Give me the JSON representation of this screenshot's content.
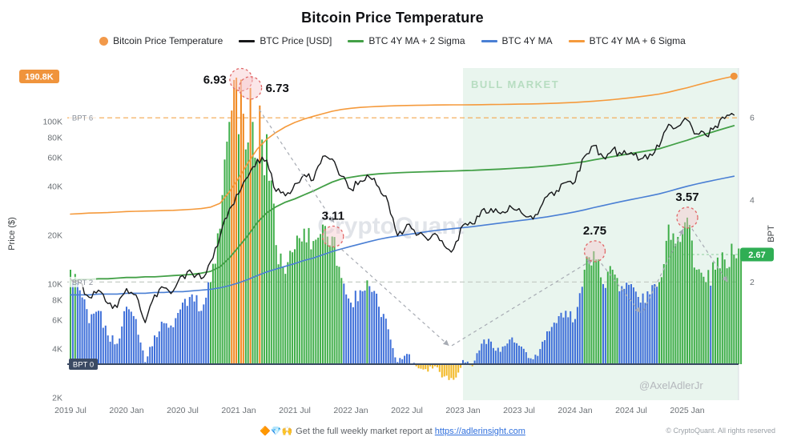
{
  "title": "Bitcoin Price Temperature",
  "legend": [
    {
      "label": "Bitcoin Price Temperature",
      "marker": "dot",
      "color": "#f2994a"
    },
    {
      "label": "BTC Price [USD]",
      "marker": "line",
      "color": "#17181a"
    },
    {
      "label": "BTC 4Y MA + 2 Sigma",
      "marker": "line",
      "color": "#43a047"
    },
    {
      "label": "BTC 4Y MA",
      "marker": "line",
      "color": "#4a7fd4"
    },
    {
      "label": "BTC 4Y MA + 6 Sigma",
      "marker": "line",
      "color": "#f59a3c"
    }
  ],
  "watermark": "CryptoQuant",
  "handle": "@AxelAdlerJr",
  "bull_market_label": "BULL MARKET",
  "footer": {
    "emoji": "🔶💎🙌",
    "text": "Get the full weekly market report at",
    "link": "https://adlerinsight.com",
    "copyright": "© CryptoQuant. All rights reserved"
  },
  "left_axis": {
    "label": "Price ($)",
    "top_badge": "190.8K",
    "ticks": [
      {
        "label": "100K",
        "value_k": 100
      },
      {
        "label": "80K",
        "value_k": 80
      },
      {
        "label": "60K",
        "value_k": 60
      },
      {
        "label": "40K",
        "value_k": 40
      },
      {
        "label": "20K",
        "value_k": 20
      },
      {
        "label": "10K",
        "value_k": 10
      },
      {
        "label": "8K",
        "value_k": 8
      },
      {
        "label": "6K",
        "value_k": 6
      },
      {
        "label": "4K",
        "value_k": 4
      },
      {
        "label": "2K",
        "value_k": 2
      }
    ]
  },
  "right_axis": {
    "label": "BPT",
    "ticks": [
      6,
      4,
      2
    ],
    "current_badge": "2.67"
  },
  "x_ticks": [
    "2019 Jul",
    "2020 Jan",
    "2020 Jul",
    "2021 Jan",
    "2021 Jul",
    "2022 Jan",
    "2022 Jul",
    "2023 Jan",
    "2023 Jul",
    "2024 Jan",
    "2024 Jul",
    "2025 Jan"
  ],
  "ref_lines": [
    {
      "label": "BPT 6",
      "bpt": 6,
      "style": "light"
    },
    {
      "label": "BPT 2",
      "bpt": 2,
      "style": "light"
    },
    {
      "label": "BPT 0",
      "bpt": 0,
      "style": "dark"
    }
  ],
  "annotations": [
    {
      "label": "6.93",
      "month": 18.25,
      "bpt": 6.93,
      "label_side": "left"
    },
    {
      "label": "6.73",
      "month": 19.25,
      "bpt": 6.73,
      "label_side": "right"
    },
    {
      "label": "3.11",
      "month": 28.1,
      "bpt": 3.11,
      "label_side": "top"
    },
    {
      "label": "2.75",
      "month": 56.1,
      "bpt": 2.75,
      "label_side": "top"
    },
    {
      "label": "3.57",
      "month": 66.0,
      "bpt": 3.57,
      "label_side": "top"
    }
  ],
  "annotation_arrows": [
    {
      "from": [
        20.2,
        6.2
      ],
      "to": [
        28.2,
        3.45
      ]
    },
    {
      "from": [
        29.0,
        2.8
      ],
      "to": [
        40.5,
        0.45
      ]
    },
    {
      "from": [
        40.8,
        0.45
      ],
      "to": [
        55.9,
        2.55
      ]
    },
    {
      "from": [
        56.8,
        2.45
      ],
      "to": [
        61.0,
        1.25
      ]
    },
    {
      "from": [
        61.3,
        1.3
      ],
      "to": [
        65.6,
        3.3
      ]
    },
    {
      "from": [
        66.5,
        3.3
      ],
      "to": [
        70.3,
        2.0
      ]
    }
  ],
  "colors": {
    "bar_blue": "#3e6fd9",
    "bar_green": "#3fae49",
    "bar_orange": "#f0861c",
    "bar_yellow": "#f2b824",
    "line_black": "#17181a",
    "line_blue": "#4a7fd4",
    "line_green": "#43a047",
    "line_orange": "#f59a3c",
    "badge_orange": "#f0943c",
    "badge_green": "#2fae54",
    "bull_bg": "#e9f5ee",
    "bull_text": "#b7ddc1",
    "annotation_red": "#e06666"
  },
  "chart_data": [
    {
      "type": "line",
      "title": "Bitcoin Price Temperature",
      "x_start": "2019-07",
      "x_interval": "1 month",
      "n_points": 72,
      "y_axis": {
        "label": "Price ($)",
        "scale": "log",
        "ticks_k": [
          2,
          4,
          6,
          8,
          10,
          20,
          40,
          60,
          80,
          100
        ],
        "range_k": [
          2,
          210
        ]
      },
      "series": [
        {
          "name": "BTC Price [USD]",
          "color": "#17181a",
          "values_k": [
            10.8,
            10.2,
            8.3,
            9.2,
            7.6,
            7.2,
            9.4,
            8.6,
            5.8,
            8.6,
            9.5,
            9.1,
            11.3,
            11.7,
            10.8,
            13.8,
            19.7,
            29.0,
            36.0,
            46.0,
            58.8,
            58.0,
            37.3,
            35.0,
            41.5,
            47.2,
            43.8,
            61.3,
            59.0,
            46.2,
            38.5,
            43.2,
            45.5,
            39.5,
            31.8,
            19.9,
            23.3,
            20.0,
            19.4,
            20.5,
            17.2,
            16.5,
            23.1,
            23.5,
            28.5,
            29.2,
            27.2,
            30.5,
            29.2,
            26.0,
            26.9,
            34.7,
            37.7,
            42.3,
            42.6,
            61.2,
            71.3,
            60.6,
            67.5,
            62.7,
            64.6,
            59.0,
            63.3,
            70.2,
            96.4,
            93.4,
            102.4,
            84.3,
            82.5,
            94.2,
            104.6,
            110.0
          ]
        },
        {
          "name": "BTC 4Y MA",
          "color": "#4a7fd4",
          "values_k": [
            8.6,
            8.6,
            8.6,
            8.7,
            8.7,
            8.7,
            8.8,
            8.8,
            8.8,
            8.9,
            8.9,
            9.0,
            9.0,
            9.1,
            9.2,
            9.3,
            9.5,
            9.8,
            10.2,
            10.7,
            11.3,
            11.9,
            12.4,
            12.9,
            13.4,
            14.0,
            14.5,
            15.2,
            15.9,
            16.5,
            17.1,
            17.7,
            18.3,
            18.9,
            19.4,
            19.8,
            20.2,
            20.6,
            21.0,
            21.4,
            21.7,
            22.0,
            22.3,
            22.6,
            23.0,
            23.4,
            23.8,
            24.2,
            24.6,
            25.0,
            25.5,
            26.0,
            26.6,
            27.2,
            27.9,
            28.7,
            29.6,
            30.5,
            31.4,
            32.3,
            33.2,
            34.1,
            35.0,
            36.0,
            37.3,
            38.7,
            40.1,
            41.4,
            42.6,
            43.8,
            45.0,
            46.2
          ]
        },
        {
          "name": "BTC 4Y MA + 2 Sigma",
          "color": "#43a047",
          "values_k": [
            10.6,
            10.7,
            10.7,
            10.8,
            10.8,
            10.9,
            11.0,
            11.0,
            11.1,
            11.1,
            11.2,
            11.3,
            11.4,
            11.5,
            11.7,
            12.0,
            12.8,
            14.5,
            17.0,
            20.0,
            24.0,
            27.5,
            30.0,
            32.0,
            33.5,
            35.5,
            37.5,
            40.0,
            42.5,
            44.5,
            45.5,
            46.5,
            47.2,
            47.8,
            48.2,
            48.5,
            48.8,
            49.0,
            49.2,
            49.4,
            49.6,
            49.8,
            50.0,
            50.2,
            50.5,
            50.8,
            51.1,
            51.5,
            51.9,
            52.3,
            52.8,
            53.4,
            54.1,
            54.9,
            55.8,
            56.8,
            58.2,
            59.6,
            61.0,
            62.4,
            63.8,
            65.2,
            66.6,
            68.2,
            71.0,
            74.0,
            77.0,
            80.5,
            84.0,
            87.5,
            91.0,
            94.6
          ]
        },
        {
          "name": "BTC 4Y MA + 6 Sigma",
          "color": "#f59a3c",
          "values_k": [
            27.0,
            27.2,
            27.4,
            27.5,
            27.6,
            27.8,
            28.0,
            28.1,
            28.2,
            28.3,
            28.4,
            28.5,
            28.7,
            28.9,
            29.2,
            29.8,
            31.5,
            37.0,
            45.0,
            56.0,
            68.0,
            78.0,
            86.0,
            93.0,
            99.0,
            104.0,
            108.0,
            112.0,
            116.0,
            119.0,
            121.0,
            122.5,
            123.5,
            124.3,
            125.0,
            125.5,
            125.9,
            126.2,
            126.5,
            126.7,
            126.9,
            127.0,
            127.1,
            127.2,
            127.4,
            127.6,
            127.8,
            128.0,
            128.3,
            128.6,
            129.0,
            129.5,
            130.1,
            130.8,
            131.6,
            132.6,
            133.8,
            135.2,
            136.8,
            138.6,
            140.6,
            142.8,
            145.2,
            148.0,
            152.0,
            157.0,
            162.0,
            168.0,
            174.0,
            180.0,
            185.5,
            190.8
          ]
        }
      ],
      "latest": {
        "six_sigma_level_k": 190.8
      }
    },
    {
      "type": "bar",
      "name": "Bitcoin Price Temperature (BPT)",
      "x_start": "2019-07",
      "x_interval": "1 month",
      "y_axis": {
        "label": "BPT",
        "ticks": [
          2,
          4,
          6
        ],
        "range": [
          -0.9,
          7.3
        ]
      },
      "values": [
        2.3,
        1.8,
        1.0,
        1.3,
        0.7,
        0.5,
        1.4,
        1.1,
        0.05,
        0.7,
        1.0,
        0.9,
        1.5,
        1.7,
        1.3,
        2.0,
        3.3,
        5.9,
        6.93,
        6.73,
        6.3,
        5.6,
        2.9,
        2.2,
        2.8,
        3.3,
        3.0,
        3.4,
        3.11,
        2.1,
        1.5,
        1.8,
        1.9,
        1.4,
        0.85,
        0.05,
        0.25,
        -0.05,
        -0.12,
        -0.05,
        -0.3,
        -0.38,
        0.1,
        -0.05,
        0.5,
        0.55,
        0.3,
        0.6,
        0.45,
        0.15,
        0.2,
        0.8,
        1.0,
        1.3,
        1.1,
        2.3,
        2.75,
        1.95,
        2.3,
        1.9,
        1.95,
        1.5,
        1.7,
        2.0,
        3.4,
        3.1,
        3.57,
        2.3,
        2.0,
        2.3,
        2.55,
        2.67
      ],
      "bar_color_rule": {
        "below_0": "yellow",
        "0_to_2": "blue",
        "2_to_6": "green",
        "above_6": "orange"
      },
      "current": 2.67
    }
  ]
}
